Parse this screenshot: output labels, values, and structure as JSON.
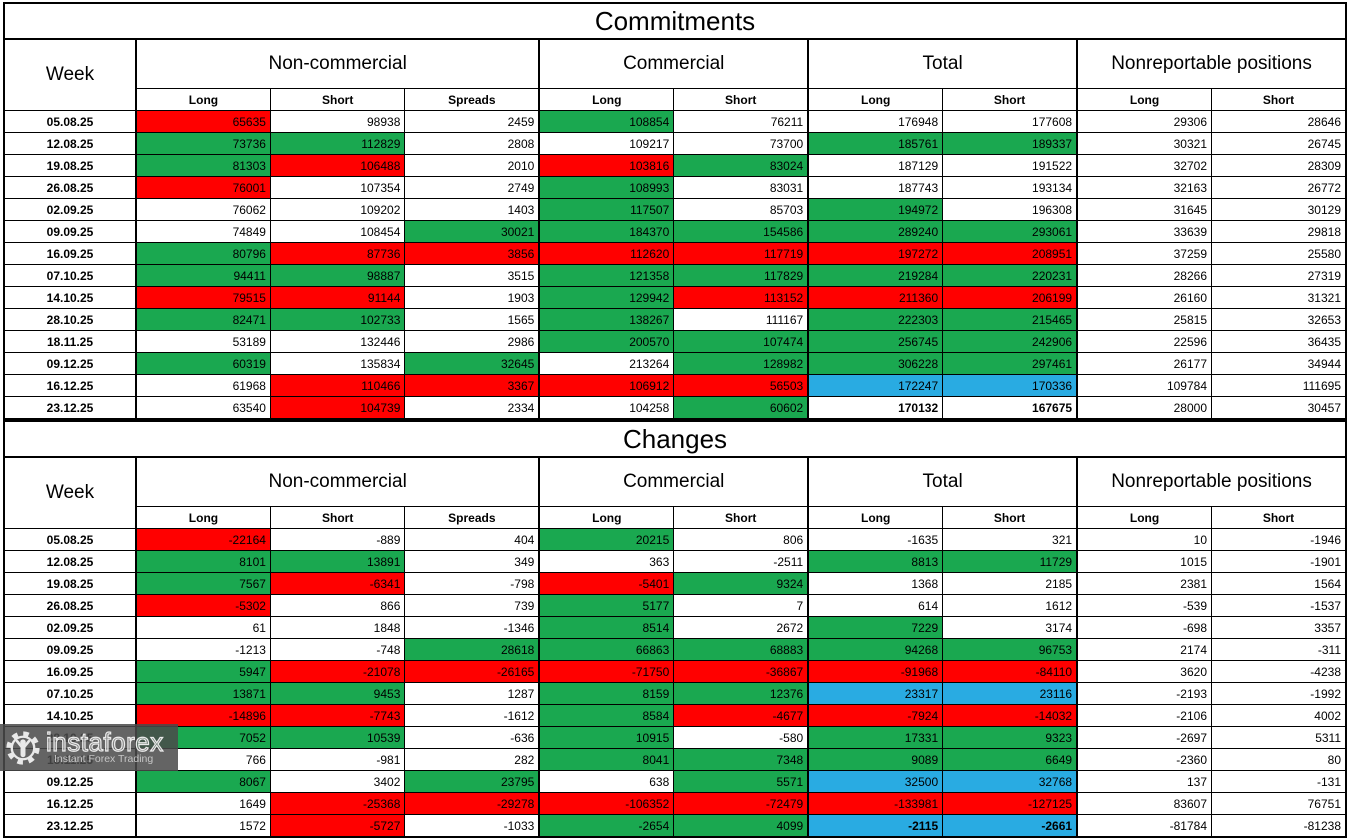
{
  "cell_colors": {
    "w": "#FFFFFF",
    "g": "#1AA850",
    "r": "#FF0000",
    "b": "#29ABE2"
  },
  "chart_data": [
    {
      "type": "table",
      "title": "Commitments",
      "header": {
        "week": "Week",
        "groups": [
          {
            "label": "Non-commercial"
          },
          {
            "label": "Commercial"
          },
          {
            "label": "Total"
          },
          {
            "label": "Nonreportable positions"
          }
        ],
        "subheaders": [
          "Long",
          "Short",
          "Spreads",
          "Long",
          "Short",
          "Long",
          "Short",
          "Long",
          "Short"
        ]
      },
      "rows": [
        {
          "week": "05.08.25",
          "values": [
            "65635",
            "98938",
            "2459",
            "108854",
            "76211",
            "176948",
            "177608",
            "29306",
            "28646"
          ],
          "colors": "rwwgwwwww"
        },
        {
          "week": "12.08.25",
          "values": [
            "73736",
            "112829",
            "2808",
            "109217",
            "73700",
            "185761",
            "189337",
            "30321",
            "26745"
          ],
          "colors": "ggwwwggww"
        },
        {
          "week": "19.08.25",
          "values": [
            "81303",
            "106488",
            "2010",
            "103816",
            "83024",
            "187129",
            "191522",
            "32702",
            "28309"
          ],
          "colors": "grwrgwwww"
        },
        {
          "week": "26.08.25",
          "values": [
            "76001",
            "107354",
            "2749",
            "108993",
            "83031",
            "187743",
            "193134",
            "32163",
            "26772"
          ],
          "colors": "rwwgwwwww"
        },
        {
          "week": "02.09.25",
          "values": [
            "76062",
            "109202",
            "1403",
            "117507",
            "85703",
            "194972",
            "196308",
            "31645",
            "30129"
          ],
          "colors": "wwwgwgwww"
        },
        {
          "week": "09.09.25",
          "values": [
            "74849",
            "108454",
            "30021",
            "184370",
            "154586",
            "289240",
            "293061",
            "33639",
            "29818"
          ],
          "colors": "wwgggggww"
        },
        {
          "week": "16.09.25",
          "values": [
            "80796",
            "87736",
            "3856",
            "112620",
            "117719",
            "197272",
            "208951",
            "37259",
            "25580"
          ],
          "colors": "grrrrrrww"
        },
        {
          "week": "07.10.25",
          "values": [
            "94411",
            "98887",
            "3515",
            "121358",
            "117829",
            "219284",
            "220231",
            "28266",
            "27319"
          ],
          "colors": "ggwggggww"
        },
        {
          "week": "14.10.25",
          "values": [
            "79515",
            "91144",
            "1903",
            "129942",
            "113152",
            "211360",
            "206199",
            "26160",
            "31321"
          ],
          "colors": "rrwgrrrww"
        },
        {
          "week": "28.10.25",
          "values": [
            "82471",
            "102733",
            "1565",
            "138267",
            "111167",
            "222303",
            "215465",
            "25815",
            "32653"
          ],
          "colors": "ggwgwggww"
        },
        {
          "week": "18.11.25",
          "values": [
            "53189",
            "132446",
            "2986",
            "200570",
            "107474",
            "256745",
            "242906",
            "22596",
            "36435"
          ],
          "colors": "wwwggggww"
        },
        {
          "week": "09.12.25",
          "values": [
            "60319",
            "135834",
            "32645",
            "213264",
            "128982",
            "306228",
            "297461",
            "26177",
            "34944"
          ],
          "colors": "gwgwgggww"
        },
        {
          "week": "16.12.25",
          "values": [
            "61968",
            "110466",
            "3367",
            "106912",
            "56503",
            "172247",
            "170336",
            "109784",
            "111695"
          ],
          "colors": "wrrrrbbww"
        },
        {
          "week": "23.12.25",
          "values": [
            "63540",
            "104739",
            "2334",
            "104258",
            "60602",
            "170132",
            "167675",
            "28000",
            "30457"
          ],
          "colors": "wrwwgwwww"
        }
      ]
    },
    {
      "type": "table",
      "title": "Changes",
      "header": {
        "week": "Week",
        "groups": [
          {
            "label": "Non-commercial"
          },
          {
            "label": "Commercial"
          },
          {
            "label": "Total"
          },
          {
            "label": "Nonreportable positions"
          }
        ],
        "subheaders": [
          "Long",
          "Short",
          "Spreads",
          "Long",
          "Short",
          "Long",
          "Short",
          "Long",
          "Short"
        ]
      },
      "rows": [
        {
          "week": "05.08.25",
          "values": [
            "-22164",
            "-889",
            "404",
            "20215",
            "806",
            "-1635",
            "321",
            "10",
            "-1946"
          ],
          "colors": "rwwgwwwww"
        },
        {
          "week": "12.08.25",
          "values": [
            "8101",
            "13891",
            "349",
            "363",
            "-2511",
            "8813",
            "11729",
            "1015",
            "-1901"
          ],
          "colors": "ggwwwggww"
        },
        {
          "week": "19.08.25",
          "values": [
            "7567",
            "-6341",
            "-798",
            "-5401",
            "9324",
            "1368",
            "2185",
            "2381",
            "1564"
          ],
          "colors": "grwrgwwww"
        },
        {
          "week": "26.08.25",
          "values": [
            "-5302",
            "866",
            "739",
            "5177",
            "7",
            "614",
            "1612",
            "-539",
            "-1537"
          ],
          "colors": "rwwgwwwww"
        },
        {
          "week": "02.09.25",
          "values": [
            "61",
            "1848",
            "-1346",
            "8514",
            "2672",
            "7229",
            "3174",
            "-698",
            "3357"
          ],
          "colors": "wwwgwgwww"
        },
        {
          "week": "09.09.25",
          "values": [
            "-1213",
            "-748",
            "28618",
            "66863",
            "68883",
            "94268",
            "96753",
            "2174",
            "-311"
          ],
          "colors": "wwgggggww"
        },
        {
          "week": "16.09.25",
          "values": [
            "5947",
            "-21078",
            "-26165",
            "-71750",
            "-36867",
            "-91968",
            "-84110",
            "3620",
            "-4238"
          ],
          "colors": "grrrrrrww"
        },
        {
          "week": "07.10.25",
          "values": [
            "13871",
            "9453",
            "1287",
            "8159",
            "12376",
            "23317",
            "23116",
            "-2193",
            "-1992"
          ],
          "colors": "ggwggbbww"
        },
        {
          "week": "14.10.25",
          "values": [
            "-14896",
            "-7743",
            "-1612",
            "8584",
            "-4677",
            "-7924",
            "-14032",
            "-2106",
            "4002"
          ],
          "colors": "rrwgrrrww"
        },
        {
          "week": "28.10.25",
          "values": [
            "7052",
            "10539",
            "-636",
            "10915",
            "-580",
            "17331",
            "9323",
            "-2697",
            "5311"
          ],
          "colors": "ggwgwggww"
        },
        {
          "week": "18.11.25",
          "values": [
            "766",
            "-981",
            "282",
            "8041",
            "7348",
            "9089",
            "6649",
            "-2360",
            "80"
          ],
          "colors": "wwwggggww"
        },
        {
          "week": "09.12.25",
          "values": [
            "8067",
            "3402",
            "23795",
            "638",
            "5571",
            "32500",
            "32768",
            "137",
            "-131"
          ],
          "colors": "gwgwgbbww"
        },
        {
          "week": "16.12.25",
          "values": [
            "1649",
            "-25368",
            "-29278",
            "-106352",
            "-72479",
            "-133981",
            "-127125",
            "83607",
            "76751"
          ],
          "colors": "wrrrrrrww"
        },
        {
          "week": "23.12.25",
          "values": [
            "1572",
            "-5727",
            "-1033",
            "-2654",
            "4099",
            "-2115",
            "-2661",
            "-81784",
            "-81238"
          ],
          "colors": "wrwggbbww"
        }
      ]
    }
  ],
  "watermark": {
    "brand": "instaforex",
    "tagline": "Instant Forex Trading"
  }
}
